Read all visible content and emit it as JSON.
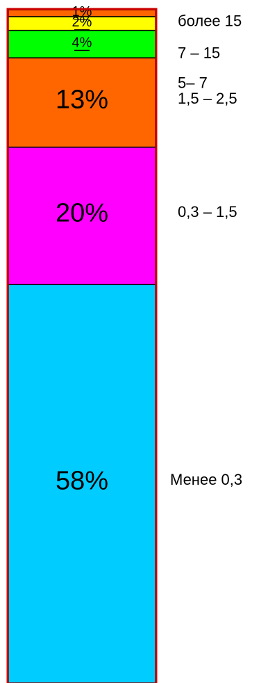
{
  "chart_data": {
    "type": "bar",
    "stacked": true,
    "orientation": "vertical",
    "unit": "%",
    "segments": [
      {
        "label": "Менее 0,3",
        "value": 58,
        "value_label": "58%",
        "color": "#00CCFF"
      },
      {
        "label": "0,3 – 1,5",
        "value": 20,
        "value_label": "20%",
        "color": "#FF00FF"
      },
      {
        "label": "1,5 – 2,5",
        "value": 13,
        "value_label": "13%",
        "color": "#FF6600"
      },
      {
        "label": "5– 7",
        "value": 4,
        "value_label": "4%",
        "color": "#00FF00"
      },
      {
        "label": "7 – 15",
        "value": 2,
        "value_label": "2%",
        "color": "#FFFF00"
      },
      {
        "label": "более 15",
        "value": 1,
        "value_label": "1%",
        "color": "#FF6600"
      }
    ],
    "border_color": "#CC0000",
    "segment_edge_color": "#000000"
  }
}
